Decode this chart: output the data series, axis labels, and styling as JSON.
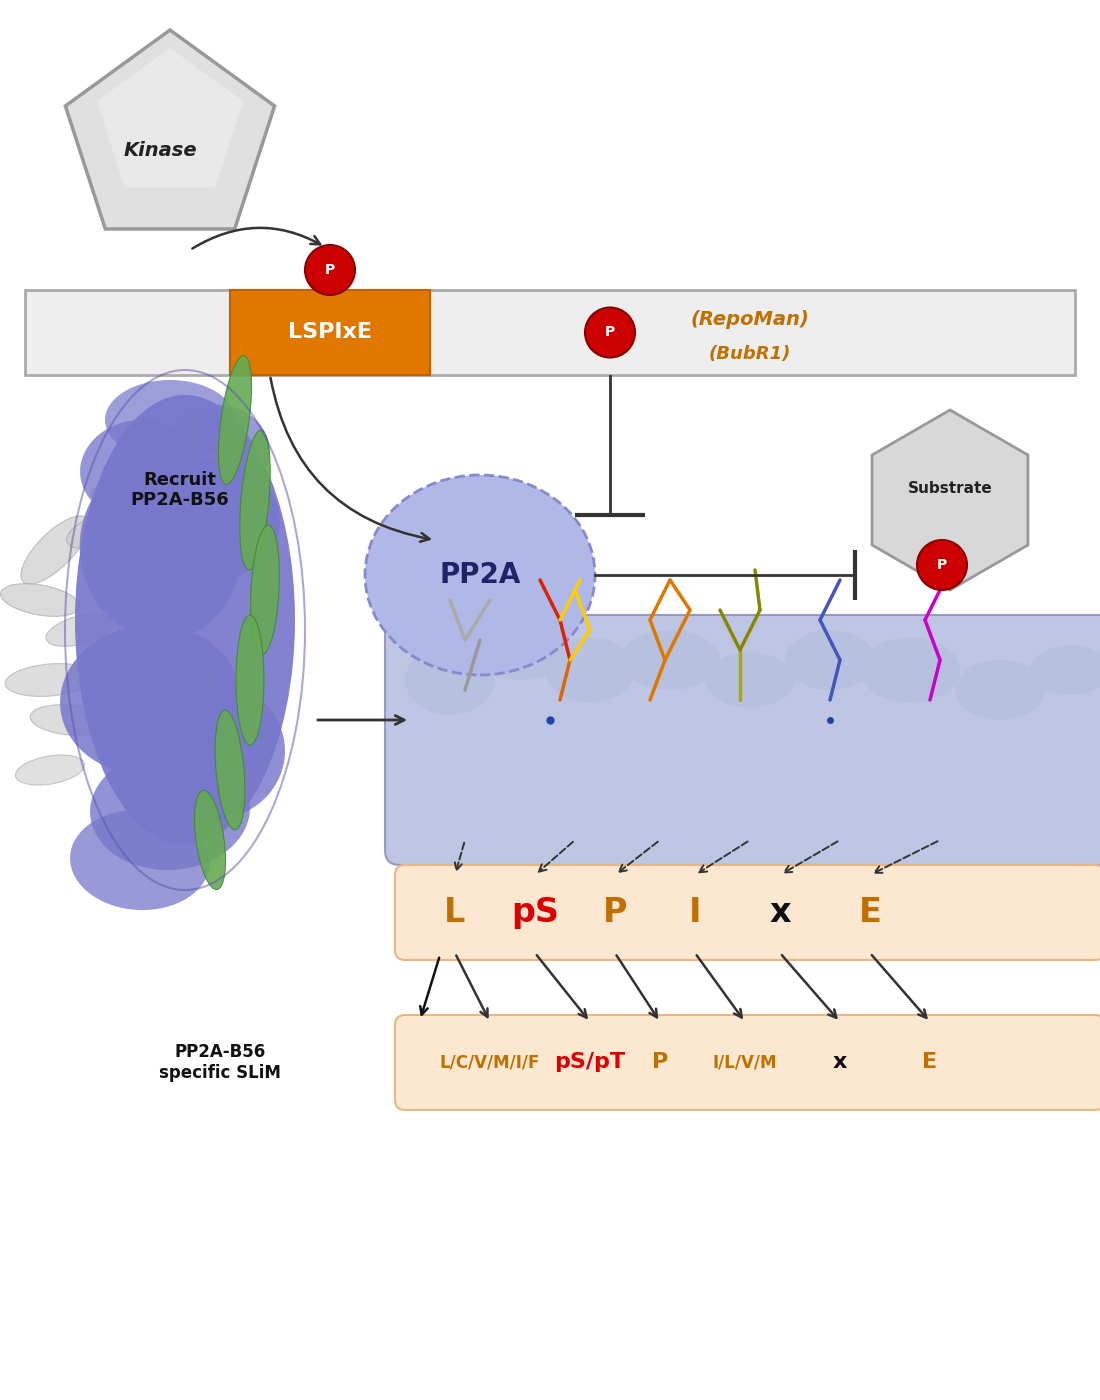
{
  "bg_color": "#ffffff",
  "orange_dark": "#c07000",
  "red_circle": "#cc0000",
  "blue_ellipse_fill": "#b0b8e8",
  "blue_ellipse_edge": "#8888cc",
  "motif_bg": "#fce8d0",
  "motif_edge": "#e8b880",
  "motif_row1": [
    "L",
    "pS",
    "P",
    "I",
    "x",
    "E"
  ],
  "motif_row1_colors": [
    "#c07000",
    "#dd0000",
    "#c07000",
    "#c07000",
    "#111111",
    "#c07000"
  ],
  "motif_row2": [
    "L/C/V/M/I/F",
    "pS/pT",
    "P",
    "I/L/V/M",
    "x",
    "E"
  ],
  "motif_row2_colors": [
    "#c07000",
    "#dd0000",
    "#c07000",
    "#c07000",
    "#111111",
    "#c07000"
  ],
  "kinase_text": "Kinase",
  "pp2a_text": "PP2A",
  "substrate_text": "Substrate",
  "repoman_text": "(RepoMan)",
  "bubr1_text": "(BubR1)",
  "recruit_text": "Recruit\nPP2A-B56",
  "slim_label": "PP2A-B56\nspecific SLiM",
  "lspixe_text": "LSPIxE",
  "kinase_fill": "#e8e8e8",
  "kinase_edge": "#999999",
  "substrate_fill": "#d8d8d8",
  "substrate_edge": "#999999",
  "bar_fill": "#eeeeee",
  "bar_edge": "#aaaaaa",
  "motif_box_fill": "#e07800",
  "motif_box_edge": "#c06000",
  "green_helix": "#66aa55",
  "green_helix_edge": "#448833",
  "gray_ribbon": "#cccccc",
  "blue_blob": "#7777cc",
  "binding_bg": "#b0b8dd"
}
